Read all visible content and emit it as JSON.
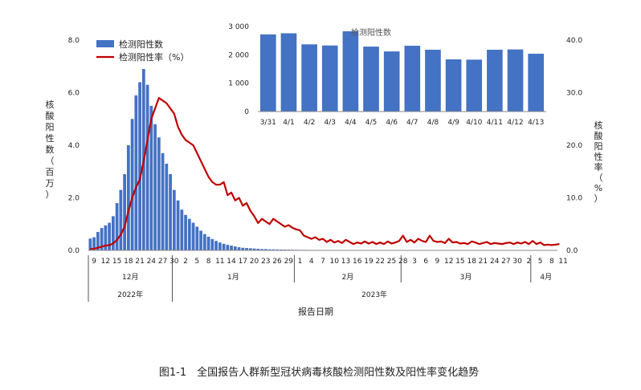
{
  "caption": "图1-1　全国报告人群新型冠状病毒核酸检测阳性数及阳性率变化趋势",
  "chart_data": [
    {
      "type": "bar+line",
      "legend": {
        "bar_label": "检测阳性数",
        "line_label": "检测阳性率（%）",
        "placement": "top-left"
      },
      "y_left_label": [
        "核",
        "酸",
        "阳",
        "性",
        "数",
        "（",
        "百",
        "万",
        "）"
      ],
      "y_right_label": [
        "核",
        "酸",
        "阳",
        "性",
        "率",
        "（",
        "%",
        "）"
      ],
      "x_label": "报告日期",
      "y_left_ticks": [
        "0.0",
        "2.0",
        "4.0",
        "6.0",
        "8.0"
      ],
      "y_left_range": [
        0,
        8
      ],
      "y_right_ticks": [
        "0.0",
        "10.0",
        "20.0",
        "30.0",
        "40.0"
      ],
      "y_right_range": [
        0,
        40
      ],
      "x_ticks": [
        "9",
        "12",
        "15",
        "18",
        "21",
        "24",
        "27",
        "30",
        "2",
        "5",
        "8",
        "11",
        "14",
        "17",
        "20",
        "23",
        "26",
        "29",
        "1",
        "4",
        "7",
        "10",
        "13",
        "16",
        "19",
        "22",
        "25",
        "28",
        "3",
        "6",
        "9",
        "12",
        "15",
        "18",
        "21",
        "24",
        "27",
        "30",
        "2",
        "5",
        "8",
        "11"
      ],
      "months": [
        "12月",
        "1月",
        "2月",
        "3月",
        "4月"
      ],
      "years": [
        "2022年",
        "2023年"
      ],
      "bar_color": "#4472c4",
      "line_color": "#c00000",
      "series": [
        {
          "name": "检测阳性数",
          "unit": "百万",
          "values": [
            0.45,
            0.5,
            0.7,
            0.85,
            0.95,
            1.05,
            1.3,
            1.8,
            2.3,
            2.9,
            4.0,
            5.0,
            5.9,
            6.4,
            6.9,
            6.3,
            5.5,
            4.8,
            4.3,
            3.7,
            3.3,
            2.9,
            2.3,
            1.9,
            1.55,
            1.35,
            1.2,
            1.05,
            0.9,
            0.75,
            0.62,
            0.52,
            0.43,
            0.36,
            0.3,
            0.25,
            0.21,
            0.18,
            0.15,
            0.12,
            0.1,
            0.09,
            0.08,
            0.07,
            0.06,
            0.05,
            0.05,
            0.04,
            0.04,
            0.035,
            0.03,
            0.03,
            0.028,
            0.025,
            0.022,
            0.02,
            0.02,
            0.018,
            0.017,
            0.016,
            0.015,
            0.015,
            0.014,
            0.013,
            0.012,
            0.012,
            0.011,
            0.011,
            0.01,
            0.01,
            0.01,
            0.01,
            0.009,
            0.009,
            0.009,
            0.009,
            0.009,
            0.008,
            0.008,
            0.008,
            0.008,
            0.008,
            0.008,
            0.008,
            0.008,
            0.008,
            0.008,
            0.008,
            0.008,
            0.008,
            0.008,
            0.008,
            0.008,
            0.008,
            0.008,
            0.008,
            0.008,
            0.008,
            0.008,
            0.008,
            0.008,
            0.008,
            0.008,
            0.008,
            0.008,
            0.008,
            0.008,
            0.008,
            0.008,
            0.008,
            0.008,
            0.008,
            0.008,
            0.008,
            0.008,
            0.008,
            0.008,
            0.008,
            0.008,
            0.008,
            0.008,
            0.008,
            0.008
          ]
        },
        {
          "name": "检测阳性率（%）",
          "unit": "%",
          "values": [
            0.3,
            0.3,
            0.5,
            0.7,
            0.9,
            1.0,
            1.3,
            2.0,
            3.0,
            4.5,
            7.5,
            10.0,
            12.0,
            13.5,
            17.0,
            21.0,
            25.0,
            27.0,
            29.0,
            28.5,
            28.0,
            27.0,
            26.0,
            23.5,
            22.0,
            21.0,
            20.5,
            20.0,
            18.5,
            17.0,
            15.5,
            14.0,
            13.0,
            12.5,
            12.5,
            13.0,
            10.5,
            11.0,
            9.5,
            10.0,
            8.5,
            9.0,
            7.5,
            6.5,
            5.2,
            6.0,
            5.5,
            5.0,
            6.0,
            5.5,
            5.0,
            4.5,
            4.8,
            4.3,
            4.0,
            3.8,
            2.8,
            2.5,
            2.2,
            2.5,
            2.0,
            2.2,
            1.6,
            2.0,
            1.5,
            1.8,
            1.4,
            2.0,
            1.6,
            1.2,
            1.5,
            1.3,
            1.7,
            1.3,
            1.6,
            1.2,
            1.5,
            1.2,
            1.7,
            1.3,
            1.5,
            1.8,
            2.8,
            1.6,
            2.0,
            1.5,
            2.2,
            1.8,
            1.6,
            2.8,
            1.8,
            1.6,
            1.7,
            1.4,
            2.2,
            1.5,
            1.6,
            1.3,
            1.4,
            1.2,
            1.7,
            1.5,
            1.2,
            1.4,
            1.6,
            1.2,
            1.4,
            1.3,
            1.2,
            1.4,
            1.5,
            1.2,
            1.5,
            1.3,
            1.6,
            1.2,
            1.8,
            1.2,
            1.5,
            1.0,
            1.1,
            1.0,
            1.1,
            1.2
          ]
        }
      ]
    },
    {
      "type": "bar",
      "title": "检测阳性数",
      "categories": [
        "3/31",
        "4/1",
        "4/2",
        "4/3",
        "4/4",
        "4/5",
        "4/6",
        "4/7",
        "4/8",
        "4/9",
        "4/10",
        "4/11",
        "4/12",
        "4/13"
      ],
      "values": [
        2720,
        2760,
        2370,
        2330,
        2830,
        2290,
        2120,
        2320,
        2180,
        1840,
        1830,
        2180,
        2190,
        2040
      ],
      "y_ticks": [
        "0",
        "1 000",
        "2 000",
        "3 000"
      ],
      "ylim": [
        0,
        3000
      ],
      "bar_color": "#4472c4"
    }
  ]
}
